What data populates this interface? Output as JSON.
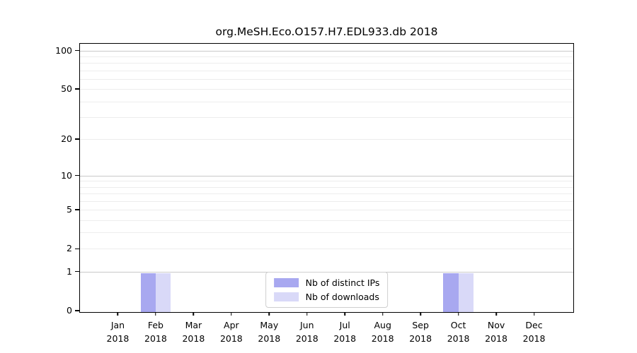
{
  "chart_data": {
    "type": "bar",
    "title": "org.MeSH.Eco.O157.H7.EDL933.db 2018",
    "year": "2018",
    "months": [
      "Jan",
      "Feb",
      "Mar",
      "Apr",
      "May",
      "Jun",
      "Jul",
      "Aug",
      "Sep",
      "Oct",
      "Nov",
      "Dec"
    ],
    "series": [
      {
        "name": "Nb of distinct IPs",
        "color": "#a8a8f0",
        "values": [
          0,
          1,
          0,
          0,
          0,
          0,
          0,
          0,
          0,
          1,
          0,
          0
        ]
      },
      {
        "name": "Nb of downloads",
        "color": "#d9d9f8",
        "values": [
          0,
          1,
          0,
          0,
          0,
          0,
          0,
          0,
          0,
          1,
          0,
          0
        ]
      }
    ],
    "y_axis": {
      "scale": "log1p",
      "ticks": [
        0,
        1,
        2,
        5,
        10,
        20,
        50,
        100
      ],
      "major_gridlines": [
        1,
        10,
        100
      ],
      "minor_gridlines": [
        2,
        3,
        4,
        5,
        6,
        7,
        8,
        9,
        20,
        30,
        40,
        50,
        60,
        70,
        80,
        90
      ],
      "max": 113
    },
    "x_axis": {
      "slots": 13,
      "bar_width_fraction": 0.4
    },
    "legend_position": "lower center",
    "grid": "horizontal"
  }
}
